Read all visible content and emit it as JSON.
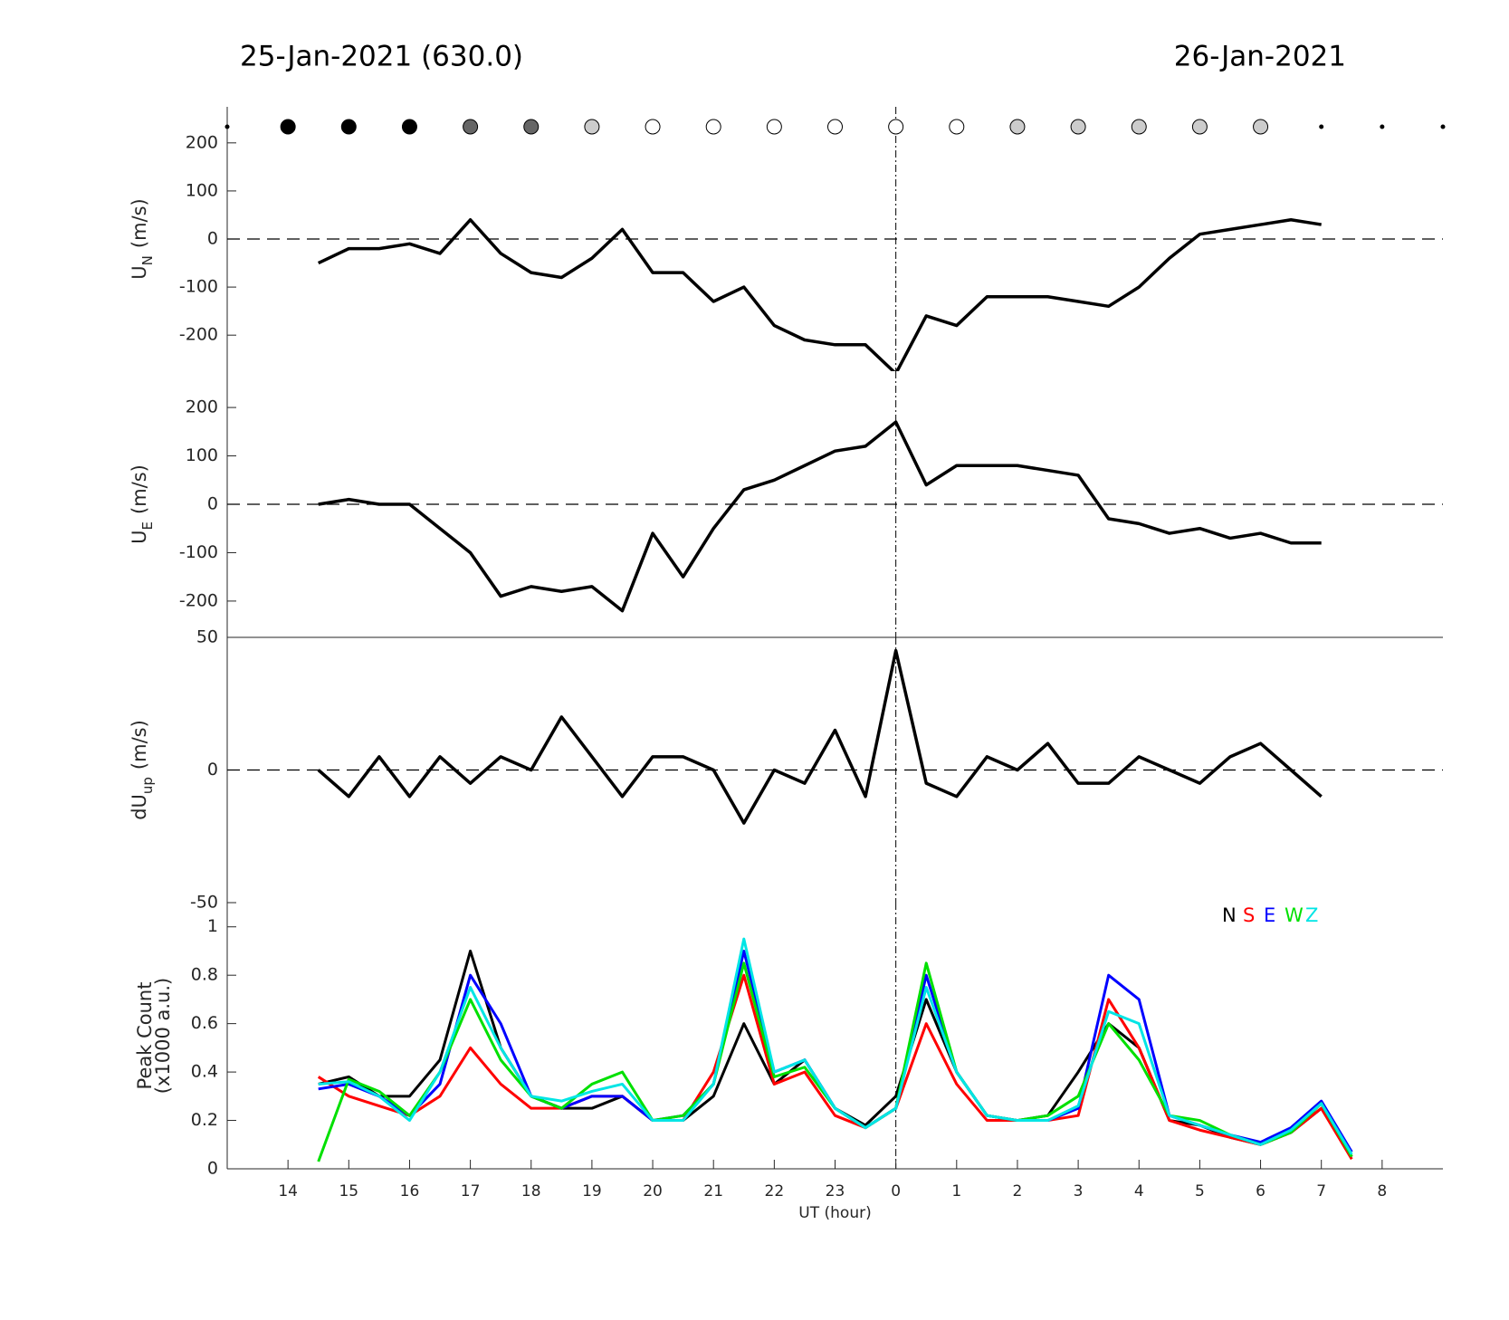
{
  "header": {
    "left_title": "25-Jan-2021 (630.0)",
    "right_title": "26-Jan-2021"
  },
  "chart_data": [
    {
      "type": "line",
      "ylabel": {
        "main": "U",
        "sub": "N",
        "unit": "(m/s)"
      },
      "xlim": [
        13,
        33
      ],
      "ylim": [
        -275,
        275
      ],
      "yticks": [
        -200,
        -100,
        0,
        100,
        200
      ],
      "zero_line": true,
      "midnight_line_x": 24,
      "sky_markers": {
        "x": [
          13,
          14,
          15,
          16,
          17,
          18,
          19,
          20,
          21,
          22,
          23,
          24,
          25,
          26,
          27,
          28,
          29,
          30,
          31,
          32,
          33
        ],
        "colors": [
          "#000000",
          "#000000",
          "#000000",
          "#000000",
          "#666666",
          "#666666",
          "#cccccc",
          "#ffffff",
          "#ffffff",
          "#ffffff",
          "#ffffff",
          "#ffffff",
          "#ffffff",
          "#cccccc",
          "#cccccc",
          "#cccccc",
          "#cccccc",
          "#cccccc",
          "#000000",
          "#000000",
          "#000000"
        ],
        "sizes": [
          2,
          8,
          8,
          8,
          8,
          8,
          8,
          8,
          8,
          8,
          8,
          8,
          8,
          8,
          8,
          8,
          8,
          8,
          2,
          2,
          2
        ]
      },
      "x": [
        14.5,
        15,
        15.5,
        16,
        16.5,
        17,
        17.5,
        18,
        18.5,
        19,
        19.5,
        20,
        20.5,
        21,
        21.5,
        22,
        22.5,
        23,
        23.5,
        24,
        24.5,
        25,
        25.5,
        26,
        26.5,
        27,
        27.5,
        28,
        28.5,
        29,
        29.5,
        30,
        30.5,
        31
      ],
      "series": [
        {
          "color": "#000000",
          "values": [
            -50,
            -20,
            -20,
            -10,
            -30,
            40,
            -30,
            -70,
            -80,
            -40,
            20,
            -70,
            -70,
            -130,
            -100,
            -180,
            -210,
            -220,
            -220,
            -280,
            -160,
            -180,
            -120,
            -120,
            -120,
            -130,
            -140,
            -100,
            -40,
            10,
            20,
            30,
            40,
            30
          ]
        }
      ]
    },
    {
      "type": "line",
      "ylabel": {
        "main": "U",
        "sub": "E",
        "unit": "(m/s)"
      },
      "xlim": [
        13,
        33
      ],
      "ylim": [
        -275,
        275
      ],
      "yticks": [
        -200,
        -100,
        0,
        100,
        200
      ],
      "zero_line": true,
      "midnight_line_x": 24,
      "x": [
        14.5,
        15,
        15.5,
        16,
        16.5,
        17,
        17.5,
        18,
        18.5,
        19,
        19.5,
        20,
        20.5,
        21,
        21.5,
        22,
        22.5,
        23,
        23.5,
        24,
        24.5,
        25,
        25.5,
        26,
        26.5,
        27,
        27.5,
        28,
        28.5,
        29,
        29.5,
        30,
        30.5,
        31
      ],
      "series": [
        {
          "color": "#000000",
          "values": [
            0,
            10,
            0,
            0,
            -50,
            -100,
            -190,
            -170,
            -180,
            -170,
            -220,
            -60,
            -150,
            -50,
            30,
            50,
            80,
            110,
            120,
            170,
            40,
            80,
            80,
            80,
            70,
            60,
            -30,
            -40,
            -60,
            -50,
            -70,
            -60,
            -80,
            -80
          ]
        }
      ]
    },
    {
      "type": "line",
      "ylabel": {
        "main": "dU",
        "sub": "up",
        "unit": "(m/s)"
      },
      "xlim": [
        13,
        33
      ],
      "ylim": [
        -50,
        50
      ],
      "yticks": [
        -50,
        0,
        50
      ],
      "zero_line": true,
      "midnight_line_x": 24,
      "x": [
        14.5,
        15,
        15.5,
        16,
        16.5,
        17,
        17.5,
        18,
        18.5,
        19,
        19.5,
        20,
        20.5,
        21,
        21.5,
        22,
        22.5,
        23,
        23.5,
        24,
        24.5,
        25,
        25.5,
        26,
        26.5,
        27,
        27.5,
        28,
        28.5,
        29,
        29.5,
        30,
        30.5,
        31
      ],
      "series": [
        {
          "color": "#000000",
          "values": [
            0,
            -10,
            5,
            -10,
            5,
            -5,
            5,
            0,
            20,
            5,
            -10,
            5,
            5,
            0,
            -20,
            0,
            -5,
            15,
            -10,
            45,
            -5,
            -10,
            5,
            0,
            10,
            -5,
            -5,
            5,
            0,
            -5,
            5,
            10,
            0,
            -10
          ]
        }
      ]
    },
    {
      "type": "line",
      "ylabel": {
        "main": "Peak Count",
        "unit": "(x1000 a.u.)"
      },
      "xlabel": "UT (hour)",
      "xlim": [
        13,
        33
      ],
      "ylim": [
        0,
        1.1
      ],
      "yticks": [
        0,
        0.2,
        0.4,
        0.6,
        0.8,
        1
      ],
      "midnight_line_x": 24,
      "xticks": [
        14,
        15,
        16,
        17,
        18,
        19,
        20,
        21,
        22,
        23,
        {
          "value": 24,
          "label": "0"
        },
        {
          "value": 25,
          "label": "1"
        },
        {
          "value": 26,
          "label": "2"
        },
        {
          "value": 27,
          "label": "3"
        },
        {
          "value": 28,
          "label": "4"
        },
        {
          "value": 29,
          "label": "5"
        },
        {
          "value": 30,
          "label": "6"
        },
        {
          "value": 31,
          "label": "7"
        },
        {
          "value": 32,
          "label": "8"
        }
      ],
      "legend": "top-right",
      "x": [
        14.5,
        15,
        15.5,
        16,
        16.5,
        17,
        17.5,
        18,
        18.5,
        19,
        19.5,
        20,
        20.5,
        21,
        21.5,
        22,
        22.5,
        23,
        23.5,
        24,
        24.5,
        25,
        25.5,
        26,
        26.5,
        27,
        27.5,
        28,
        28.5,
        29,
        29.5,
        30,
        30.5,
        31,
        31.5
      ],
      "series": [
        {
          "name": "N",
          "color": "#000000",
          "values": [
            0.35,
            0.38,
            0.3,
            0.3,
            0.45,
            0.9,
            0.5,
            0.3,
            0.25,
            0.25,
            0.3,
            0.2,
            0.2,
            0.3,
            0.6,
            0.35,
            0.45,
            0.25,
            0.18,
            0.3,
            0.7,
            0.4,
            0.22,
            0.2,
            0.22,
            0.4,
            0.6,
            0.5,
            0.2,
            0.18,
            0.13,
            0.1,
            0.15,
            0.25,
            0.05
          ]
        },
        {
          "name": "S",
          "color": "#ff0000",
          "values": [
            0.38,
            0.3,
            0.26,
            0.22,
            0.3,
            0.5,
            0.35,
            0.25,
            0.25,
            0.3,
            0.3,
            0.2,
            0.2,
            0.4,
            0.8,
            0.35,
            0.4,
            0.22,
            0.17,
            0.25,
            0.6,
            0.35,
            0.2,
            0.2,
            0.2,
            0.22,
            0.7,
            0.5,
            0.2,
            0.16,
            0.13,
            0.1,
            0.15,
            0.25,
            0.04
          ]
        },
        {
          "name": "E",
          "color": "#0000ff",
          "values": [
            0.33,
            0.35,
            0.3,
            0.22,
            0.35,
            0.8,
            0.6,
            0.3,
            0.25,
            0.3,
            0.3,
            0.2,
            0.22,
            0.35,
            0.9,
            0.4,
            0.45,
            0.25,
            0.17,
            0.25,
            0.8,
            0.4,
            0.22,
            0.2,
            0.2,
            0.25,
            0.8,
            0.7,
            0.22,
            0.18,
            0.14,
            0.11,
            0.17,
            0.28,
            0.07
          ]
        },
        {
          "name": "W",
          "color": "#00e000",
          "values": [
            0.03,
            0.37,
            0.32,
            0.22,
            0.4,
            0.7,
            0.45,
            0.3,
            0.25,
            0.35,
            0.4,
            0.2,
            0.22,
            0.35,
            0.85,
            0.38,
            0.42,
            0.25,
            0.17,
            0.25,
            0.85,
            0.4,
            0.22,
            0.2,
            0.22,
            0.3,
            0.6,
            0.45,
            0.22,
            0.2,
            0.14,
            0.1,
            0.15,
            0.27,
            0.05
          ]
        },
        {
          "name": "Z",
          "color": "#00e5e5",
          "values": [
            0.35,
            0.36,
            0.3,
            0.2,
            0.4,
            0.75,
            0.5,
            0.3,
            0.28,
            0.32,
            0.35,
            0.2,
            0.2,
            0.35,
            0.95,
            0.4,
            0.45,
            0.25,
            0.17,
            0.25,
            0.75,
            0.4,
            0.22,
            0.2,
            0.2,
            0.26,
            0.65,
            0.6,
            0.22,
            0.18,
            0.14,
            0.1,
            0.16,
            0.27,
            0.06
          ]
        }
      ]
    }
  ]
}
